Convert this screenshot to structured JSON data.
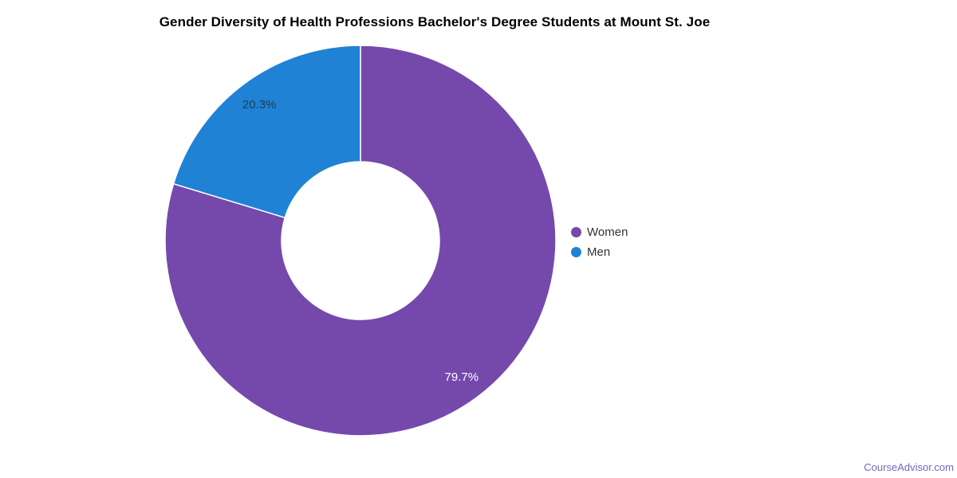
{
  "chart_data": {
    "type": "pie",
    "subtype": "donut",
    "title": "Gender Diversity of Health Professions Bachelor's Degree Students at Mount St. Joe",
    "unit": "%",
    "legend_position": "right",
    "start_angle_deg": 0,
    "direction": "clockwise",
    "grid": false,
    "series": [
      {
        "name": "Women",
        "value": 79.7,
        "label": "79.7%",
        "color": "#7549AC",
        "label_color": "#FFFFFF"
      },
      {
        "name": "Men",
        "value": 20.3,
        "label": "20.3%",
        "color": "#1F82D4",
        "label_color": "#16405F"
      }
    ]
  },
  "legend": {
    "items": [
      {
        "label": "Women",
        "color": "#7549AC"
      },
      {
        "label": "Men",
        "color": "#1F82D4"
      }
    ]
  },
  "watermark": {
    "text": "CourseAdvisor.com",
    "color": "#7567BD"
  }
}
